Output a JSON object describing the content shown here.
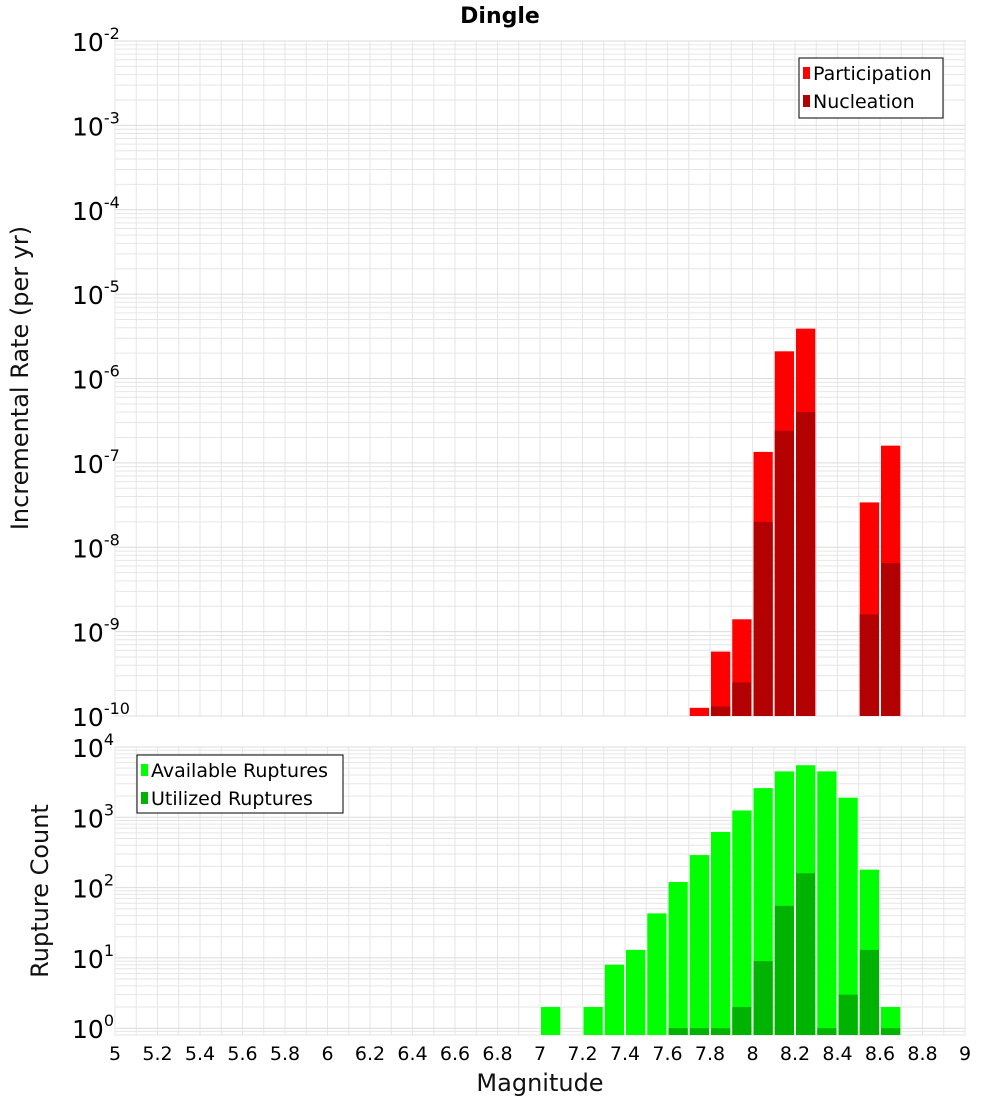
{
  "title": "Dingle",
  "xlabel": "Magnitude",
  "colors": {
    "participation": "#ff0000",
    "nucleation": "#b30000",
    "available": "#00ff00",
    "utilized": "#00b300",
    "grid": "#e6e6e6",
    "frame": "#bbbbbb"
  },
  "chart_data": [
    {
      "type": "bar",
      "name": "incremental-rate",
      "title": "Dingle",
      "ylabel": "Incremental Rate (per yr)",
      "yscale": "log",
      "ylim": [
        1e-10,
        0.01
      ],
      "xlim": [
        5,
        9
      ],
      "legend_position": "top-right",
      "y_tick_labels": [
        {
          "base": "10",
          "exp": "-10"
        },
        {
          "base": "10",
          "exp": "-9"
        },
        {
          "base": "10",
          "exp": "-8"
        },
        {
          "base": "10",
          "exp": "-7"
        },
        {
          "base": "10",
          "exp": "-6"
        },
        {
          "base": "10",
          "exp": "-5"
        },
        {
          "base": "10",
          "exp": "-4"
        },
        {
          "base": "10",
          "exp": "-3"
        },
        {
          "base": "10",
          "exp": "-2"
        }
      ],
      "series": [
        {
          "name": "Participation",
          "x": [
            7.75,
            7.85,
            7.95,
            8.05,
            8.15,
            8.25,
            8.55,
            8.65
          ],
          "values": [
            1.25e-10,
            5.8e-10,
            1.4e-09,
            1.35e-07,
            2.1e-06,
            3.9e-06,
            3.4e-08,
            1.6e-07
          ]
        },
        {
          "name": "Nucleation",
          "x": [
            7.85,
            7.95,
            8.05,
            8.15,
            8.25,
            8.55,
            8.65
          ],
          "values": [
            1.3e-10,
            2.5e-10,
            2e-08,
            2.4e-07,
            4e-07,
            1.6e-09,
            6.5e-09
          ]
        }
      ]
    },
    {
      "type": "bar",
      "name": "rupture-count",
      "ylabel": "Rupture Count",
      "yscale": "log",
      "ylim": [
        0.8,
        10000
      ],
      "xlim": [
        5,
        9
      ],
      "legend_position": "top-left",
      "y_tick_labels": [
        {
          "base": "10",
          "exp": "0"
        },
        {
          "base": "10",
          "exp": "1"
        },
        {
          "base": "10",
          "exp": "2"
        },
        {
          "base": "10",
          "exp": "3"
        },
        {
          "base": "10",
          "exp": "4"
        }
      ],
      "series": [
        {
          "name": "Available Ruptures",
          "x": [
            7.05,
            7.25,
            7.35,
            7.45,
            7.55,
            7.65,
            7.75,
            7.85,
            7.95,
            8.05,
            8.15,
            8.25,
            8.35,
            8.45,
            8.55,
            8.65
          ],
          "values": [
            2,
            2,
            8,
            13,
            43,
            120,
            290,
            620,
            1250,
            2600,
            4500,
            5500,
            4500,
            1900,
            180,
            2
          ]
        },
        {
          "name": "Utilized Ruptures",
          "x": [
            7.65,
            7.75,
            7.85,
            7.95,
            8.05,
            8.15,
            8.25,
            8.35,
            8.45,
            8.55,
            8.65
          ],
          "values": [
            1,
            1,
            1,
            2,
            9,
            55,
            160,
            1,
            3,
            13,
            1
          ]
        }
      ]
    }
  ],
  "x_tick_labels": [
    "5",
    "5.2",
    "5.4",
    "5.6",
    "5.8",
    "6",
    "6.2",
    "6.4",
    "6.6",
    "6.8",
    "7",
    "7.2",
    "7.4",
    "7.6",
    "7.8",
    "8",
    "8.2",
    "8.4",
    "8.6",
    "8.8",
    "9"
  ]
}
